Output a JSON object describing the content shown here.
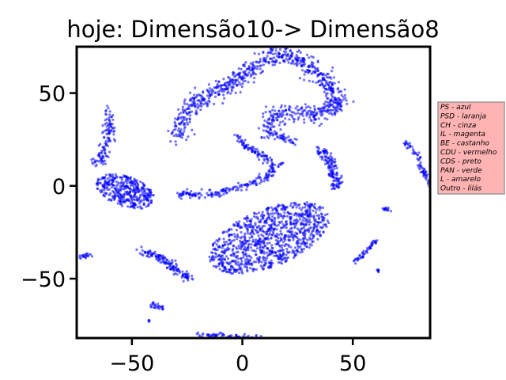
{
  "chart_data": {
    "type": "scatter",
    "title": "hoje: Dimensão10-> Dimensão8",
    "xlabel": "",
    "ylabel": "",
    "xlim": [
      -75,
      85
    ],
    "ylim": [
      -82,
      75
    ],
    "xticks": [
      -50,
      0,
      50
    ],
    "yticks": [
      -50,
      0,
      50
    ],
    "xtick_labels": [
      "−50",
      "0",
      "50"
    ],
    "ytick_labels": [
      "−50",
      "0",
      "50"
    ],
    "grid": false,
    "point_color": "#0000ff",
    "legend": {
      "placement": "outside-right",
      "background": "#ffb3b3",
      "border": "#999999",
      "entries": [
        "PS - azul",
        "PSD - laranja",
        "CH - cinza",
        "IL - magenta",
        "BE - castanho",
        "CDU - vermelho",
        "CDS - preto",
        "PAN - verde",
        "L - amarelo",
        "Outro - lilás"
      ]
    },
    "clusters": [
      {
        "shape": "curve",
        "points": [
          [
            -30,
            26
          ],
          [
            -27,
            35
          ],
          [
            -22,
            44
          ],
          [
            -14,
            50
          ],
          [
            -5,
            55
          ],
          [
            2,
            60
          ],
          [
            8,
            66
          ],
          [
            13,
            70
          ],
          [
            18,
            72
          ],
          [
            22,
            70
          ],
          [
            26,
            68
          ],
          [
            30,
            64
          ],
          [
            34,
            60
          ],
          [
            39,
            55
          ],
          [
            42,
            50
          ],
          [
            43,
            44
          ],
          [
            40,
            41
          ],
          [
            34,
            39
          ],
          [
            27,
            39
          ],
          [
            20,
            39
          ],
          [
            15,
            37
          ],
          [
            13,
            33
          ],
          [
            13,
            29
          ],
          [
            14,
            26
          ]
        ],
        "width": 5,
        "count": 900
      },
      {
        "shape": "curve",
        "points": [
          [
            -29,
            -4
          ],
          [
            -21,
            -5
          ],
          [
            -12,
            -4
          ],
          [
            -2,
            -1
          ],
          [
            6,
            2
          ],
          [
            12,
            6
          ],
          [
            14,
            11
          ],
          [
            11,
            15
          ],
          [
            6,
            18
          ],
          [
            1,
            22
          ],
          [
            -1,
            25
          ],
          [
            -3,
            26
          ]
        ],
        "width": 2,
        "count": 260
      },
      {
        "shape": "curve",
        "points": [
          [
            16,
            27
          ],
          [
            20,
            25
          ],
          [
            23,
            24
          ]
        ],
        "width": 1.5,
        "count": 30
      },
      {
        "shape": "curve",
        "points": [
          [
            34,
            19
          ],
          [
            37,
            18
          ],
          [
            40,
            13
          ],
          [
            42,
            5
          ],
          [
            43,
            -2
          ]
        ],
        "width": 2.5,
        "count": 140
      },
      {
        "shape": "ellipse",
        "cx": 12,
        "cy": -28,
        "rx": 30,
        "ry": 15,
        "angle": 28,
        "count": 1000
      },
      {
        "shape": "curve",
        "points": [
          [
            -66,
            12
          ],
          [
            -64,
            16
          ],
          [
            -61,
            23
          ],
          [
            -60,
            32
          ],
          [
            -61,
            40
          ]
        ],
        "width": 3,
        "count": 120
      },
      {
        "shape": "ellipse",
        "cx": -53,
        "cy": -3,
        "rx": 14,
        "ry": 8,
        "angle": -25,
        "count": 380
      },
      {
        "shape": "curve",
        "points": [
          [
            -46,
            -35
          ],
          [
            -40,
            -37
          ],
          [
            -35,
            -40
          ],
          [
            -30,
            -45
          ],
          [
            -24,
            -50
          ]
        ],
        "width": 2.5,
        "count": 140
      },
      {
        "shape": "curve",
        "points": [
          [
            -20,
            -80
          ],
          [
            -10,
            -81
          ],
          [
            0,
            -82
          ],
          [
            10,
            -82
          ]
        ],
        "width": 1.5,
        "count": 90
      },
      {
        "shape": "curve",
        "points": [
          [
            -41,
            -64
          ],
          [
            -38,
            -65
          ],
          [
            -36,
            -66
          ]
        ],
        "width": 1.5,
        "count": 25
      },
      {
        "shape": "curve",
        "points": [
          [
            -74,
            -38
          ],
          [
            -71,
            -38
          ],
          [
            -69,
            -37
          ]
        ],
        "width": 1.2,
        "count": 20
      },
      {
        "shape": "curve",
        "points": [
          [
            51,
            -41
          ],
          [
            55,
            -37
          ],
          [
            59,
            -32
          ],
          [
            61,
            -29
          ]
        ],
        "width": 1.2,
        "count": 50
      },
      {
        "shape": "curve",
        "points": [
          [
            74,
            24
          ],
          [
            78,
            18
          ],
          [
            82,
            8
          ],
          [
            85,
            -1
          ]
        ],
        "width": 1.5,
        "count": 70
      },
      {
        "shape": "curve",
        "points": [
          [
            64,
            -12
          ],
          [
            66,
            -13
          ]
        ],
        "width": 1.2,
        "count": 15
      },
      {
        "shape": "curve",
        "points": [
          [
            61,
            -45
          ],
          [
            62,
            -46
          ]
        ],
        "width": 0.8,
        "count": 8
      },
      {
        "shape": "curve",
        "points": [
          [
            16,
            11
          ],
          [
            18,
            12
          ]
        ],
        "width": 0.8,
        "count": 8
      },
      {
        "shape": "curve",
        "points": [
          [
            -43,
            -72
          ],
          [
            -42,
            -73
          ]
        ],
        "width": 0.6,
        "count": 4
      }
    ]
  }
}
